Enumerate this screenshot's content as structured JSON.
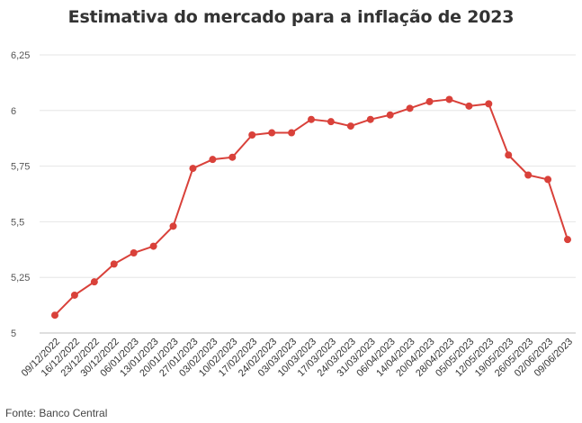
{
  "chart_data": {
    "type": "line",
    "title": "Estimativa do mercado para a inflação de 2023",
    "xlabel": "",
    "ylabel": "",
    "ylim": [
      5,
      6.25
    ],
    "y_ticks": [
      "5",
      "5,25",
      "5,5",
      "5,75",
      "6",
      "6,25"
    ],
    "y_tick_values": [
      5,
      5.25,
      5.5,
      5.75,
      6,
      6.25
    ],
    "grid": true,
    "x_labels": [
      "09/12/2022",
      "16/12/2022",
      "23/12/2022",
      "30/12/2022",
      "06/01/2023",
      "13/01/2023",
      "20/01/2023",
      "27/01/2023",
      "03/02/2023",
      "10/02/2023",
      "17/02/2023",
      "24/02/2023",
      "03/03/2023",
      "10/03/2023",
      "17/03/2023",
      "24/03/2023",
      "31/03/2023",
      "06/04/2023",
      "14/04/2023",
      "20/04/2023",
      "28/04/2023",
      "05/05/2023",
      "12/05/2023",
      "19/05/2023",
      "26/05/2023",
      "02/06/2023",
      "09/06/2023"
    ],
    "series": [
      {
        "color": "#d9413a",
        "values": [
          5.08,
          5.17,
          5.23,
          5.31,
          5.36,
          5.39,
          5.48,
          5.74,
          5.78,
          5.79,
          5.89,
          5.9,
          5.9,
          5.96,
          5.95,
          5.93,
          5.96,
          5.98,
          6.01,
          6.04,
          6.05,
          6.02,
          6.03,
          5.8,
          5.71,
          5.69,
          5.42
        ]
      }
    ]
  },
  "source": "Fonte: Banco Central"
}
